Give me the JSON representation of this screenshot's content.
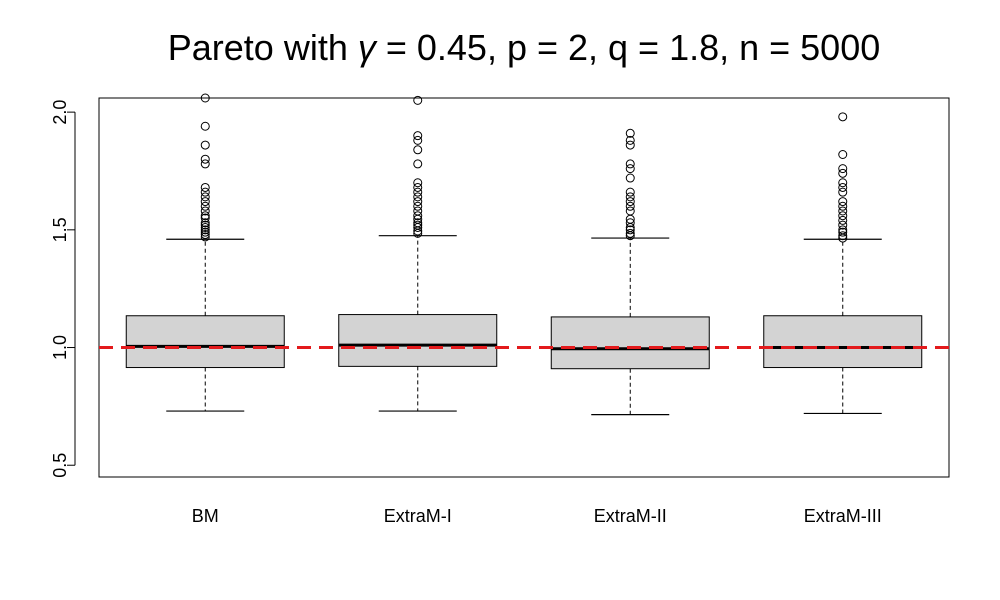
{
  "chart_data": {
    "type": "boxplot",
    "title_parts": [
      {
        "text": "Pareto with ",
        "italic": false
      },
      {
        "text": "γ",
        "italic": true
      },
      {
        "text": " = 0.45, p = 2, q = 1.8, n = 5000",
        "italic": false
      }
    ],
    "categories": [
      "BM",
      "ExtraM-I",
      "ExtraM-II",
      "ExtraM-III"
    ],
    "ylim": [
      0.45,
      2.06
    ],
    "yticks": [
      0.5,
      1.0,
      1.5,
      2.0
    ],
    "ytick_labels": [
      "0.5",
      "1.0",
      "1.5",
      "2.0"
    ],
    "reference_line": {
      "value": 1.0,
      "color": "#e31a1c",
      "style": "dashed"
    },
    "box_fill": "#d3d3d3",
    "boxes": [
      {
        "name": "BM",
        "whisker_low": 0.73,
        "q1": 0.915,
        "median": 1.005,
        "q3": 1.135,
        "whisker_high": 1.46,
        "outliers": [
          1.47,
          1.48,
          1.49,
          1.5,
          1.51,
          1.52,
          1.53,
          1.55,
          1.56,
          1.58,
          1.6,
          1.62,
          1.64,
          1.66,
          1.68,
          1.78,
          1.8,
          1.86,
          1.94,
          2.06
        ]
      },
      {
        "name": "ExtraM-I",
        "whisker_low": 0.73,
        "q1": 0.92,
        "median": 1.01,
        "q3": 1.14,
        "whisker_high": 1.475,
        "outliers": [
          1.485,
          1.495,
          1.51,
          1.52,
          1.53,
          1.545,
          1.56,
          1.58,
          1.6,
          1.62,
          1.64,
          1.66,
          1.68,
          1.7,
          1.78,
          1.84,
          1.88,
          1.9,
          2.05
        ]
      },
      {
        "name": "ExtraM-II",
        "whisker_low": 0.715,
        "q1": 0.91,
        "median": 0.995,
        "q3": 1.13,
        "whisker_high": 1.465,
        "outliers": [
          1.475,
          1.485,
          1.5,
          1.51,
          1.53,
          1.545,
          1.58,
          1.6,
          1.62,
          1.64,
          1.66,
          1.72,
          1.76,
          1.78,
          1.86,
          1.88,
          1.91
        ]
      },
      {
        "name": "ExtraM-III",
        "whisker_low": 0.72,
        "q1": 0.915,
        "median": 1.0,
        "q3": 1.135,
        "whisker_high": 1.46,
        "outliers": [
          1.465,
          1.475,
          1.49,
          1.5,
          1.52,
          1.54,
          1.56,
          1.58,
          1.6,
          1.62,
          1.66,
          1.68,
          1.7,
          1.74,
          1.76,
          1.82,
          1.98
        ]
      }
    ]
  }
}
